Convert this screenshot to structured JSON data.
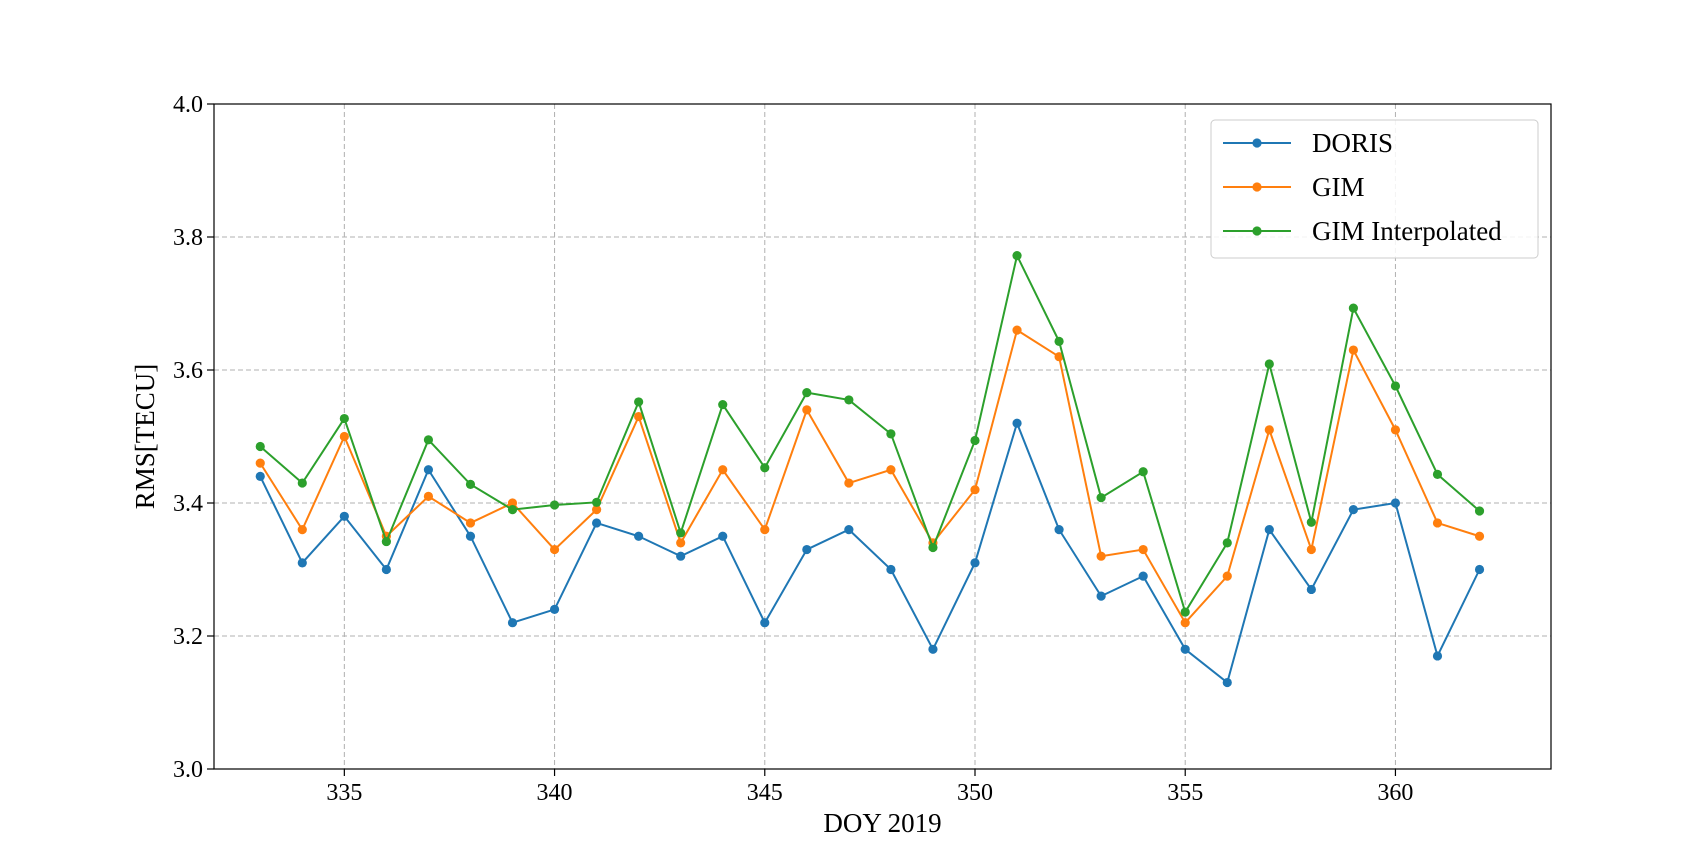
{
  "chart_data": {
    "type": "line",
    "xlabel": "DOY 2019",
    "ylabel": "RMS[TECU]",
    "xlim": [
      331.9,
      363.7
    ],
    "ylim": [
      3.0,
      4.0
    ],
    "xticks": [
      335,
      340,
      345,
      350,
      355,
      360
    ],
    "xtick_labels": [
      "335",
      "340",
      "345",
      "350",
      "355",
      "360"
    ],
    "yticks": [
      3.0,
      3.2,
      3.4,
      3.6,
      3.8,
      4.0
    ],
    "ytick_labels": [
      "3.0",
      "3.2",
      "3.4",
      "3.6",
      "3.8",
      "4.0"
    ],
    "grid": true,
    "legend_position": "top-right",
    "x": [
      333,
      334,
      335,
      336,
      337,
      338,
      339,
      340,
      341,
      342,
      343,
      344,
      345,
      346,
      347,
      348,
      349,
      350,
      351,
      352,
      353,
      354,
      355,
      356,
      357,
      358,
      359,
      360,
      361,
      362
    ],
    "series": [
      {
        "name": "DORIS",
        "color": "#1f77b4",
        "values": [
          3.44,
          3.31,
          3.38,
          3.3,
          3.45,
          3.35,
          3.22,
          3.24,
          3.37,
          3.35,
          3.32,
          3.35,
          3.22,
          3.33,
          3.36,
          3.3,
          3.18,
          3.31,
          3.52,
          3.36,
          3.26,
          3.29,
          3.18,
          3.13,
          3.36,
          3.27,
          3.39,
          3.4,
          3.17,
          3.3
        ]
      },
      {
        "name": "GIM",
        "color": "#ff7f0e",
        "values": [
          3.46,
          3.36,
          3.5,
          3.35,
          3.41,
          3.37,
          3.4,
          3.33,
          3.39,
          3.53,
          3.34,
          3.45,
          3.36,
          3.54,
          3.43,
          3.45,
          3.34,
          3.42,
          3.66,
          3.62,
          3.32,
          3.33,
          3.22,
          3.29,
          3.51,
          3.33,
          3.63,
          3.51,
          3.37,
          3.35
        ]
      },
      {
        "name": "GIM Interpolated",
        "color": "#2ca02c",
        "values": [
          3.485,
          3.43,
          3.527,
          3.342,
          3.495,
          3.428,
          3.39,
          3.397,
          3.401,
          3.552,
          3.355,
          3.548,
          3.453,
          3.566,
          3.555,
          3.504,
          3.333,
          3.494,
          3.772,
          3.643,
          3.408,
          3.447,
          3.236,
          3.34,
          3.609,
          3.371,
          3.693,
          3.576,
          3.443,
          3.388
        ]
      }
    ]
  }
}
